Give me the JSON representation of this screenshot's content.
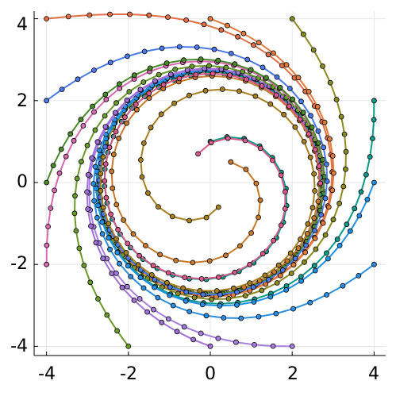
{
  "chart_data": {
    "type": "line",
    "title": "",
    "xlabel": "",
    "ylabel": "",
    "xlim": [
      -4.3,
      4.3
    ],
    "ylim": [
      -4.3,
      4.3
    ],
    "xticks": [
      -4,
      -2,
      0,
      2,
      4
    ],
    "yticks": [
      -4,
      -2,
      0,
      2,
      4
    ],
    "xtick_labels": [
      "-4",
      "-2",
      "0",
      "2",
      "4"
    ],
    "ytick_labels": [
      "-4",
      "-2",
      "0",
      "2",
      "4"
    ],
    "grid": true,
    "legend": "none",
    "marker": "circle",
    "limit_cycle_radius": 2.7,
    "steps_per_series": 45,
    "series": [
      {
        "start": [
          -4,
          4
        ],
        "color": "#e26f46"
      },
      {
        "start": [
          0,
          4
        ],
        "color": "#e07c3c"
      },
      {
        "start": [
          2,
          4
        ],
        "color": "#8b8b1f"
      },
      {
        "start": [
          4,
          2
        ],
        "color": "#0a9a8a"
      },
      {
        "start": [
          4,
          0
        ],
        "color": "#1e90e8"
      },
      {
        "start": [
          4,
          -2
        ],
        "color": "#2a8fe0"
      },
      {
        "start": [
          2,
          -4
        ],
        "color": "#a77ee0"
      },
      {
        "start": [
          0,
          -4
        ],
        "color": "#a070d8"
      },
      {
        "start": [
          -2,
          -4
        ],
        "color": "#6a9a2a"
      },
      {
        "start": [
          -4,
          -2
        ],
        "color": "#d86ab0"
      },
      {
        "start": [
          -4,
          0
        ],
        "color": "#4a8a2a"
      },
      {
        "start": [
          -4,
          2
        ],
        "color": "#4a7ae8"
      },
      {
        "start": [
          0,
          1
        ],
        "color": "#0a9a8a"
      },
      {
        "start": [
          0.5,
          0.5
        ],
        "color": "#c87a2a"
      },
      {
        "start": [
          -0.3,
          0.7
        ],
        "color": "#d85a8a"
      },
      {
        "start": [
          0.2,
          -0.6
        ],
        "color": "#a88020"
      }
    ]
  }
}
